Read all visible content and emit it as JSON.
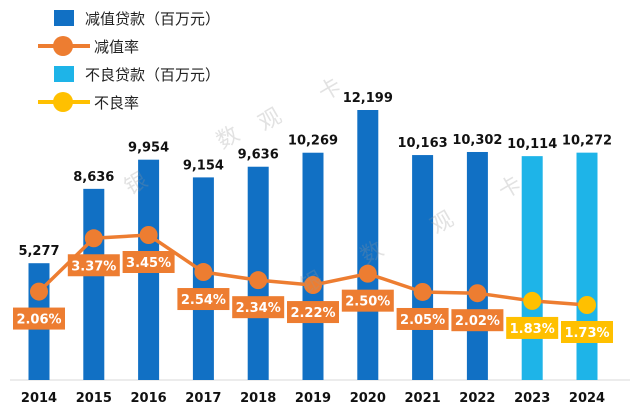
{
  "chart_data": {
    "type": "bar+line",
    "categories": [
      "2014",
      "2015",
      "2016",
      "2017",
      "2018",
      "2019",
      "2020",
      "2021",
      "2022",
      "2023",
      "2024"
    ],
    "bars": {
      "impaired_loans": {
        "name": "减值贷款（百万元）",
        "color": "#1170C4",
        "values": [
          5277,
          8636,
          9954,
          9154,
          9636,
          10269,
          12199,
          10163,
          10302,
          null,
          null
        ],
        "labels": [
          "5,277",
          "8,636",
          "9,954",
          "9,154",
          "9,636",
          "10,269",
          "12,199",
          "10,163",
          "10,302",
          "",
          ""
        ]
      },
      "npl_loans": {
        "name": "不良贷款（百万元）",
        "color": "#1EB4E8",
        "values": [
          null,
          null,
          null,
          null,
          null,
          null,
          null,
          null,
          null,
          10114,
          10272
        ],
        "labels": [
          "",
          "",
          "",
          "",
          "",
          "",
          "",
          "",
          "",
          "10,114",
          "10,272"
        ]
      }
    },
    "lines": {
      "impaired_ratio": {
        "name": "减值率",
        "color": "#ED7D31",
        "values": [
          2.06,
          3.37,
          3.45,
          2.54,
          2.34,
          2.22,
          2.5,
          2.05,
          2.02,
          null,
          null
        ],
        "labels": [
          "2.06%",
          "3.37%",
          "3.45%",
          "2.54%",
          "2.34%",
          "2.22%",
          "2.50%",
          "2.05%",
          "2.02%",
          "",
          ""
        ]
      },
      "npl_ratio": {
        "name": "不良率",
        "color": "#FFC000",
        "values": [
          null,
          null,
          null,
          null,
          null,
          null,
          null,
          null,
          2.02,
          1.83,
          1.73
        ],
        "labels": [
          "",
          "",
          "",
          "",
          "",
          "",
          "",
          "",
          "",
          "1.83%",
          "1.73%"
        ]
      }
    },
    "ylim_bars": [
      0,
      13000
    ],
    "grid": false,
    "legend_position": "top-left"
  },
  "watermark": [
    "银",
    "数",
    "观",
    "卡"
  ]
}
